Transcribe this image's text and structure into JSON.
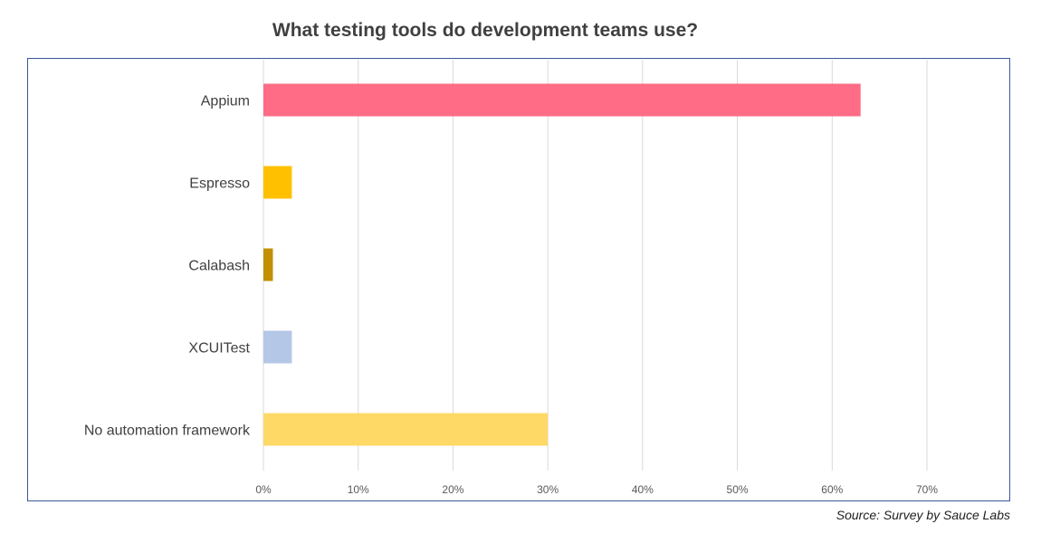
{
  "chart_data": {
    "type": "bar",
    "orientation": "horizontal",
    "title": "What testing tools do development teams use?",
    "categories": [
      "Appium",
      "Espresso",
      "Calabash",
      "XCUITest",
      "No automation framework"
    ],
    "values": [
      63,
      3,
      1,
      3,
      30
    ],
    "colors": [
      "#fe6c85",
      "#ffc000",
      "#c18f00",
      "#b4c7e7",
      "#ffd966"
    ],
    "xlim": [
      0,
      70
    ],
    "ticks": [
      "0%",
      "10%",
      "20%",
      "30%",
      "40%",
      "50%",
      "60%",
      "70%"
    ],
    "tick_values": [
      0,
      10,
      20,
      30,
      40,
      50,
      60,
      70
    ],
    "grid": true,
    "legend": "none",
    "xlabel": "",
    "ylabel": ""
  },
  "source_note": "Source: Survey by Sauce Labs",
  "colors": {
    "frame": "#3b5998",
    "grid": "#d9d9d9",
    "text": "#404040"
  }
}
